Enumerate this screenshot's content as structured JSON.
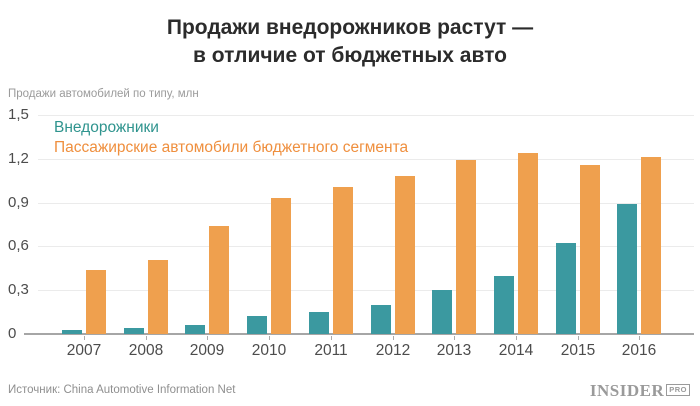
{
  "header": {
    "title_line1": "Продажи внедорожников растут —",
    "title_line2": "в отличие от бюджетных авто"
  },
  "chart_data": {
    "type": "bar",
    "title": "Продажи внедорожников растут — в отличие от бюджетных авто",
    "subtitle": "Продажи автомобилей по типу, млн",
    "categories": [
      "2007",
      "2008",
      "2009",
      "2010",
      "2011",
      "2012",
      "2013",
      "2014",
      "2015",
      "2016"
    ],
    "series": [
      {
        "name": "Внедорожники",
        "color": "#3b99a0",
        "label_color": "#2f948e",
        "values": [
          0.03,
          0.04,
          0.06,
          0.12,
          0.15,
          0.2,
          0.3,
          0.4,
          0.62,
          0.89
        ]
      },
      {
        "name": "Пассажирские автомобили бюджетного сегмента",
        "color": "#efa04e",
        "label_color": "#ef8f3e",
        "values": [
          0.44,
          0.51,
          0.74,
          0.93,
          1.01,
          1.08,
          1.19,
          1.24,
          1.16,
          1.21
        ]
      }
    ],
    "ylim": [
      0,
      1.5
    ],
    "yticks": [
      {
        "value": 0,
        "label": "0"
      },
      {
        "value": 0.3,
        "label": "0,3"
      },
      {
        "value": 0.6,
        "label": "0,6"
      },
      {
        "value": 0.9,
        "label": "0,9"
      },
      {
        "value": 1.2,
        "label": "1,2"
      },
      {
        "value": 1.5,
        "label": "1,5"
      }
    ],
    "grid": true,
    "legend_position": "top-left"
  },
  "footer": {
    "source": "Источник: China Automotive Information Net",
    "logo_text": "INSIDER",
    "logo_suffix": "PRO"
  }
}
